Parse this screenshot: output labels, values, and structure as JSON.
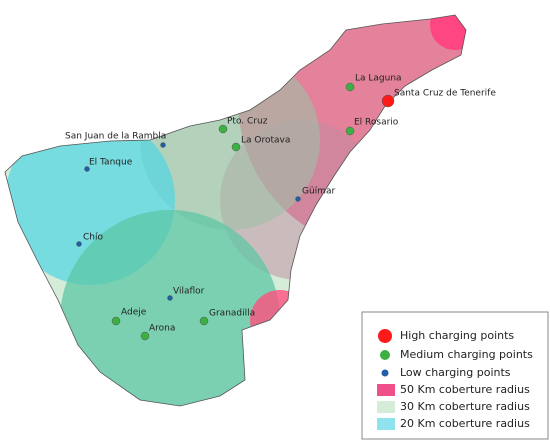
{
  "charging_points": [
    {
      "legend": "High charging points",
      "color": "#ff1a1a",
      "places": [
        "Santa Cruz de Tenerife"
      ]
    },
    {
      "legend": "Medium charging points",
      "color": "#3cb043",
      "places": [
        "La Laguna",
        "El Rosario",
        "Pto. Cruz",
        "La Orotava",
        "Adeje",
        "Arona",
        "Granadilla"
      ]
    },
    {
      "legend": "Low charging points",
      "color": "#1f5fa8",
      "places": [
        "San Juan de la Rambla",
        "El Tanque",
        "Güímar",
        "Chío",
        "Vilaflor"
      ]
    }
  ],
  "coverage": [
    {
      "legend": "50 Km coberture radius",
      "color": "#f0508a"
    },
    {
      "legend": "30 Km coberture radius",
      "color": "#d4ecd8"
    },
    {
      "legend": "20 Km coberture radius",
      "color": "#8fe3ec"
    }
  ]
}
